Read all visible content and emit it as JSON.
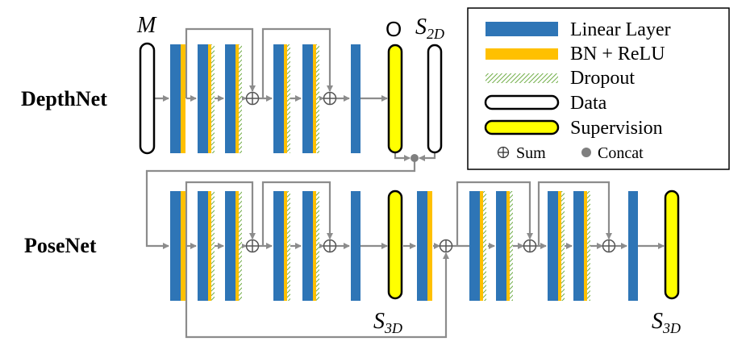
{
  "colors": {
    "linear": "#2e75b6",
    "bn_relu": "#ffc000",
    "dropout": "#a9d18e",
    "data_stroke": "#000000",
    "supervision_fill": "#ffff00",
    "wire": "#8c8c8c"
  },
  "depthnet": {
    "label": "DepthNet",
    "input_label": "M",
    "output_label": "O",
    "target_main": "S",
    "target_sub": "2D"
  },
  "posenet": {
    "label": "PoseNet",
    "target1_main": "S",
    "target1_sub": "3D",
    "target2_main": "S",
    "target2_sub": "3D"
  },
  "legend": {
    "linear": "Linear Layer",
    "bn_relu": "BN + ReLU",
    "dropout": "Dropout",
    "data": "Data",
    "supervision": "Supervision",
    "sum": "Sum",
    "concat": "Concat",
    "sum_icon": "sum-icon",
    "concat_icon": "concat-icon"
  }
}
